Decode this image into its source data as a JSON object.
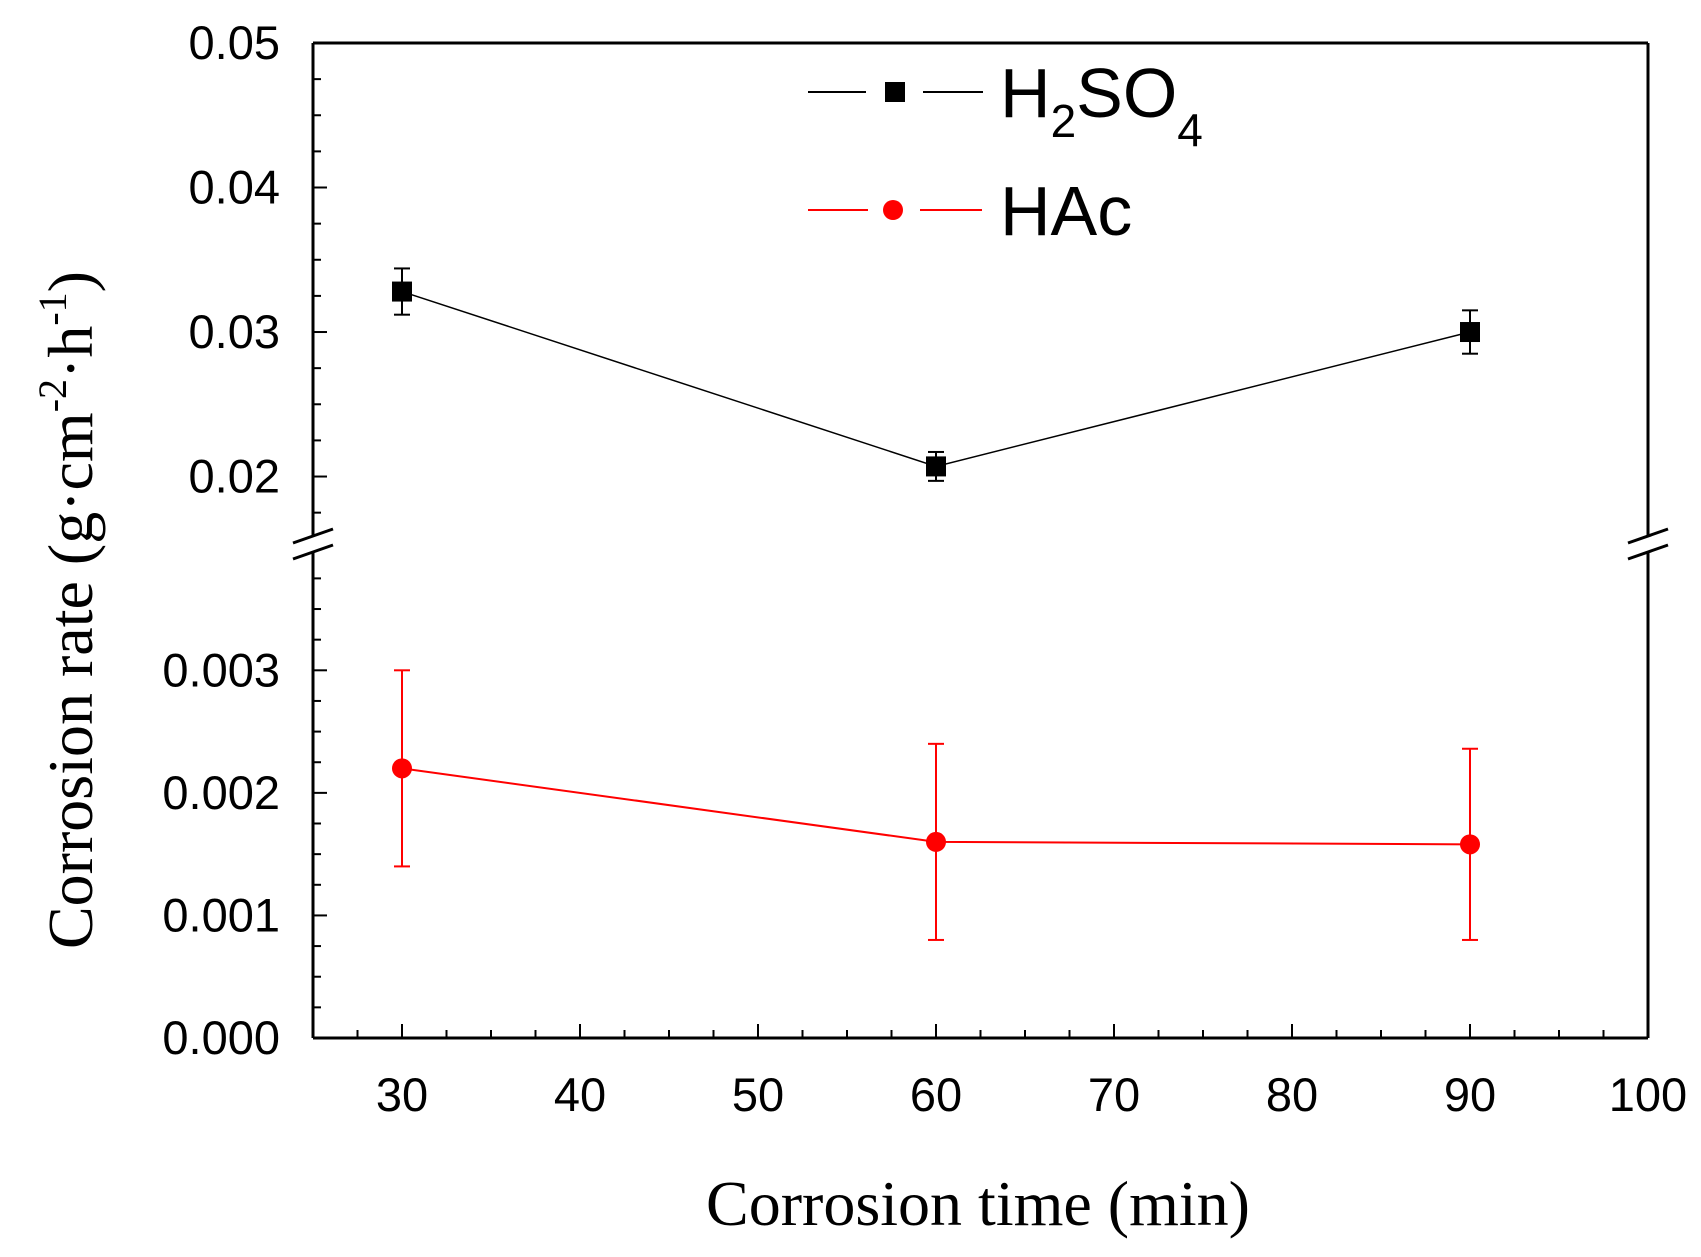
{
  "chart_data": {
    "type": "line",
    "xlabel": "Corrosion time (min)",
    "ylabel": {
      "prefix": "Corrosion rate (g·cm",
      "sup1": "-2",
      "mid": "·h",
      "sup2": "-1",
      "suffix": ")"
    },
    "xlim": [
      25,
      100
    ],
    "x_ticks": [
      30,
      40,
      50,
      60,
      70,
      80,
      90,
      100
    ],
    "x_tick_labels": [
      "30",
      "40",
      "50",
      "60",
      "70",
      "80",
      "90",
      "100"
    ],
    "y_break": true,
    "y_lower": {
      "ylim": [
        0,
        0.0039
      ],
      "ticks": [
        0,
        0.001,
        0.002,
        0.003
      ],
      "tick_labels": [
        "0.000",
        "0.001",
        "0.002",
        "0.003"
      ]
    },
    "y_upper": {
      "ylim": [
        0.0163,
        0.05
      ],
      "ticks": [
        0.02,
        0.03,
        0.04,
        0.05
      ],
      "tick_labels": [
        "0.02",
        "0.03",
        "0.04",
        "0.05"
      ]
    },
    "legend_position": "top-center",
    "series": [
      {
        "name": "H2SO4",
        "legend_main": "H",
        "legend_sub1": "2",
        "legend_mid": "SO",
        "legend_sub2": "4",
        "marker": "square",
        "color": "#000000",
        "segment": "upper",
        "x": [
          30,
          60,
          90
        ],
        "y": [
          0.0328,
          0.0207,
          0.03
        ],
        "err": [
          0.0016,
          0.001,
          0.0015
        ]
      },
      {
        "name": "HAc",
        "legend_main": "HAc",
        "marker": "circle",
        "color": "#ff0000",
        "segment": "lower",
        "x": [
          30,
          60,
          90
        ],
        "y": [
          0.0022,
          0.0016,
          0.00158
        ],
        "err": [
          0.0008,
          0.0008,
          0.00078
        ]
      }
    ]
  }
}
